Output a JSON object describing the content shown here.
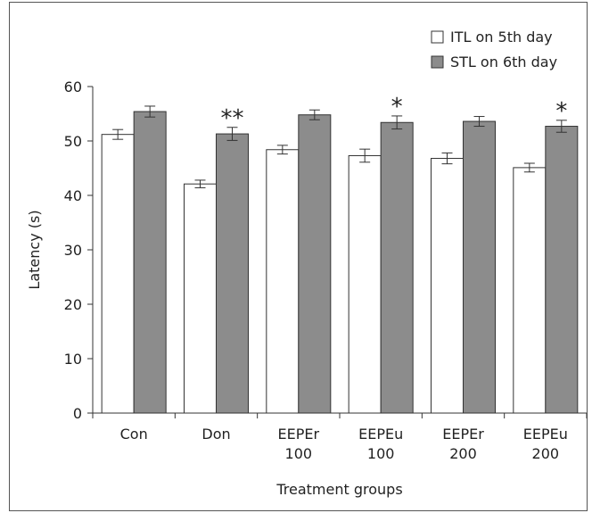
{
  "chart_data": {
    "type": "bar",
    "categories": [
      [
        "Con"
      ],
      [
        "Don"
      ],
      [
        "EEPEr",
        "100"
      ],
      [
        "EEPEu",
        "100"
      ],
      [
        "EEPEr",
        "200"
      ],
      [
        "EEPEu",
        "200"
      ]
    ],
    "series": [
      {
        "name": "ITL on 5th day",
        "color": "#ffffff",
        "values": [
          51.2,
          42.1,
          48.4,
          47.3,
          46.8,
          45.1
        ],
        "errors": [
          0.9,
          0.7,
          0.8,
          1.2,
          1.0,
          0.8
        ]
      },
      {
        "name": "STL on 6th day",
        "color": "#8c8c8c",
        "values": [
          55.4,
          51.3,
          54.8,
          53.4,
          53.6,
          52.7
        ],
        "errors": [
          1.0,
          1.2,
          0.9,
          1.2,
          0.9,
          1.1
        ]
      }
    ],
    "significance": [
      {
        "category_index": 1,
        "series_index": 1,
        "label": "**"
      },
      {
        "category_index": 3,
        "series_index": 1,
        "label": "*"
      },
      {
        "category_index": 5,
        "series_index": 1,
        "label": "*"
      }
    ],
    "xlabel": "Treatment groups",
    "ylabel": "Latency (s)",
    "ylim": [
      0,
      60
    ],
    "yticks": [
      0,
      10,
      20,
      30,
      40,
      50,
      60
    ],
    "legend_position": "top-right",
    "grid": false
  }
}
